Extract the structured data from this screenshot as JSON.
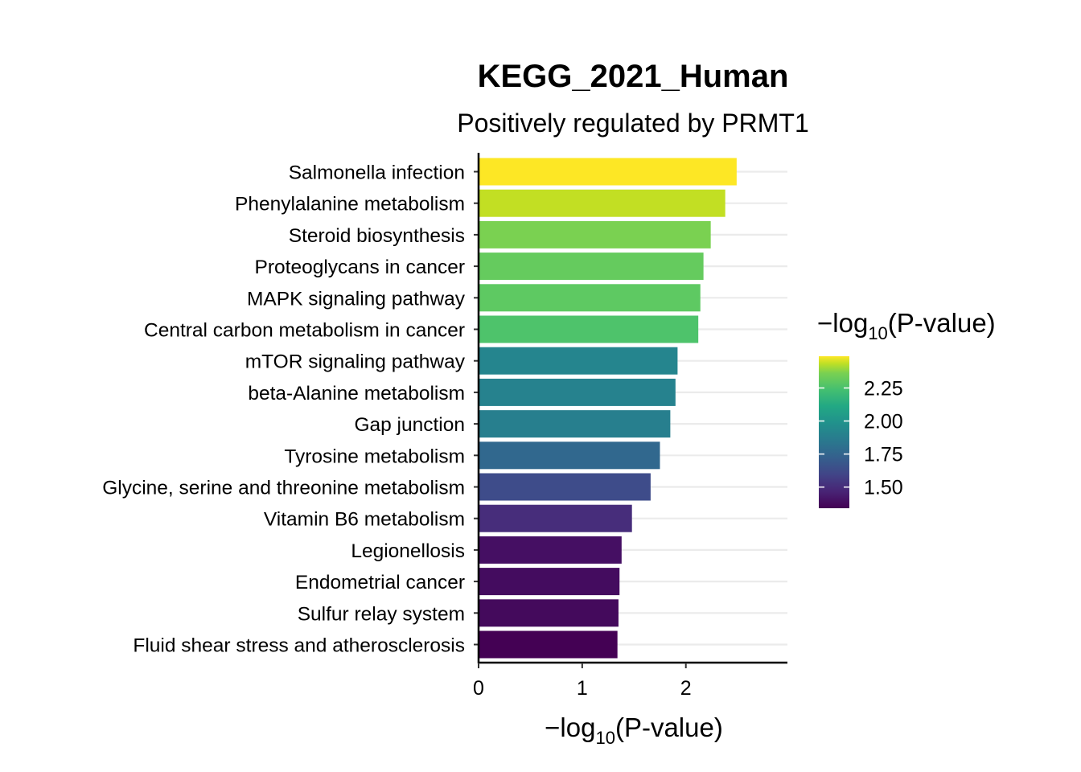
{
  "chart_data": {
    "type": "bar",
    "orientation": "horizontal",
    "title": "KEGG_2021_Human",
    "subtitle": "Positively regulated by PRMT1",
    "xlabel_prefix": "−log",
    "xlabel_sub": "10",
    "xlabel_suffix": "(P-value)",
    "ylabel": "",
    "xlim": [
      0,
      2.98
    ],
    "x_ticks": [
      "0",
      "1",
      "2"
    ],
    "grid": "horizontal-major",
    "categories": [
      "Salmonella infection",
      "Phenylalanine metabolism",
      "Steroid biosynthesis",
      "Proteoglycans in cancer",
      "MAPK signaling pathway",
      "Central carbon metabolism in cancer",
      "mTOR signaling pathway",
      "beta-Alanine metabolism",
      "Gap junction",
      "Tyrosine metabolism",
      "Glycine, serine and threonine metabolism",
      "Vitamin B6 metabolism",
      "Legionellosis",
      "Endometrial cancer",
      "Sulfur relay system",
      "Fluid shear stress and atherosclerosis"
    ],
    "values": [
      2.49,
      2.38,
      2.24,
      2.17,
      2.14,
      2.12,
      1.92,
      1.9,
      1.85,
      1.75,
      1.66,
      1.48,
      1.38,
      1.36,
      1.35,
      1.34
    ],
    "colors": [
      "#fde725",
      "#c2df23",
      "#7ad151",
      "#65cb5e",
      "#5ec962",
      "#4ec36b",
      "#25858e",
      "#26828e",
      "#277f8e",
      "#31688e",
      "#3e4c8a",
      "#472d7b",
      "#450f63",
      "#440c5f",
      "#440a5c",
      "#440154"
    ],
    "legend": {
      "title_prefix": "−log",
      "title_sub": "10",
      "title_suffix": "(P-value)",
      "position": "right",
      "scale": "viridis",
      "range": [
        1.34,
        2.49
      ],
      "ticks": [
        "1.50",
        "1.75",
        "2.00",
        "2.25"
      ],
      "tick_values": [
        1.5,
        1.75,
        2.0,
        2.25
      ]
    }
  }
}
